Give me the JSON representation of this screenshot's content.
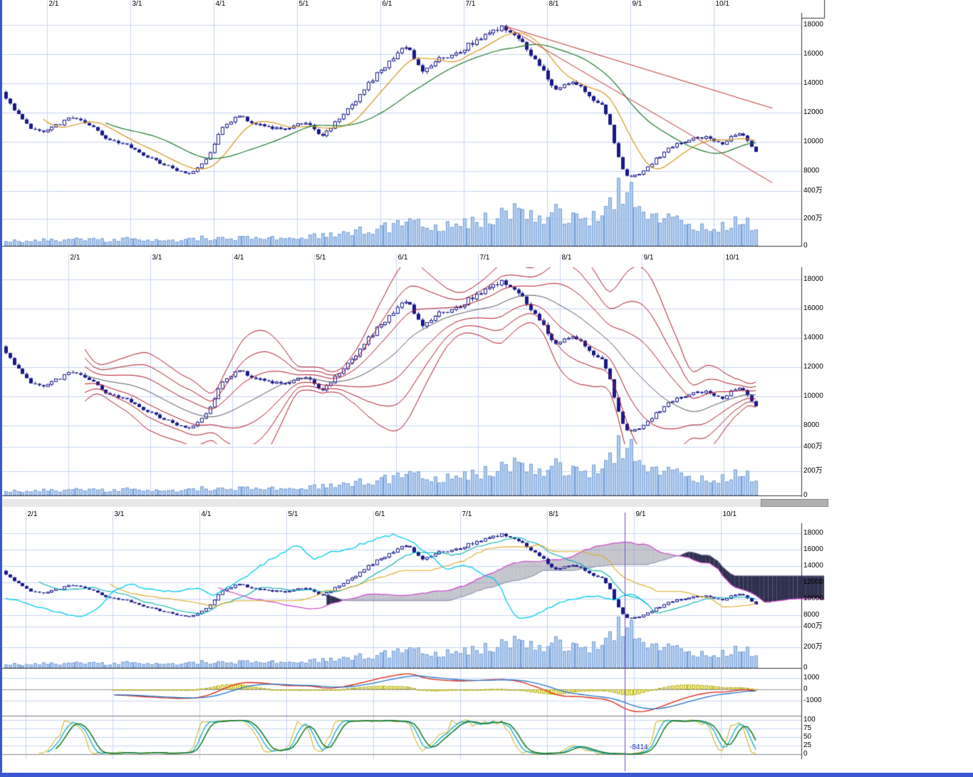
{
  "axes": {
    "month_labels": [
      "2/1",
      "3/1",
      "4/1",
      "5/1",
      "6/1",
      "7/1",
      "8/1",
      "9/1",
      "10/1"
    ],
    "price_ticks": [
      "18000",
      "16000",
      "14000",
      "12000",
      "10000",
      "8000"
    ],
    "volume_ticks": [
      "400万",
      "200万",
      "0"
    ],
    "macd_ticks": [
      "1000",
      "0",
      "-1000"
    ],
    "oscillator_ticks": [
      "100",
      "75",
      "50",
      "25",
      "0"
    ]
  },
  "cursor": {
    "value_label": "-8414"
  },
  "colors": {
    "grid": "#c8d4f0",
    "axis": "#333333",
    "candle_up_fill": "#ffffff",
    "candle_down_fill": "#1a1a8c",
    "candle_border": "#1a1a8c",
    "volume_fill": "#aecdf2",
    "volume_border": "#7b9fd4",
    "ma_short": "#d4951c",
    "ma_long": "#1e7a2e",
    "trendline": "#c03030",
    "bollinger_band": "#b01525",
    "bollinger_center": "#555566",
    "ichimoku_tenkan": "#00b0b0",
    "ichimoku_kijun": "#ddaa22",
    "ichimoku_chikou": "#00ccee",
    "ichimoku_senkou_a": "#cc44cc",
    "ichimoku_senkou_b": "#8888aa",
    "cloud_bull": "rgba(150,150,165,0.55)",
    "cloud_bear": "rgba(25,25,60,0.9)",
    "macd_line": "#dd2211",
    "macd_signal": "#2277cc",
    "macd_hist_fill": "#f0ee70",
    "macd_hist_border": "#b9b23a",
    "stoch_k": "#ccaa00",
    "stoch_d": "#00aacc",
    "stoch_sd": "#117722",
    "cursor": "#7755cc",
    "cursor_value": "#2233bb",
    "frame": "#3a57d0",
    "scroll_thumb": "#b0b0b0",
    "scroll_track": "#e8e8e8"
  },
  "chart_data": {
    "type": "candlestick",
    "title": "",
    "description": "Daily stock candlestick chart in three stacked panels, each with volume bars: (1) price with moving averages and descending trendlines from the July peak, (2) price with Bollinger bands at 1/2/3 sigma, (3) price with Ichimoku cloud plus MACD and stochastic oscillator sub-charts",
    "x_axis_months": [
      "2/1",
      "3/1",
      "4/1",
      "5/1",
      "6/1",
      "7/1",
      "8/1",
      "9/1",
      "10/1"
    ],
    "price_tick_values": [
      18000,
      16000,
      14000,
      12000,
      10000,
      8000
    ],
    "volume_tick_values": [
      400,
      200,
      0
    ],
    "volume_unit": "万",
    "macd_tick_values": [
      1000,
      0,
      -1000
    ],
    "oscillator_tick_values": [
      100,
      75,
      50,
      25,
      0
    ],
    "ylim": [
      6800,
      18600
    ],
    "n_days": 181,
    "anchor_step": 4,
    "noise_seed": 20240613,
    "close_anchors": [
      12900,
      11500,
      10700,
      11100,
      11600,
      11200,
      10300,
      9900,
      9300,
      8700,
      8200,
      7900,
      8800,
      10900,
      11700,
      11200,
      10900,
      11000,
      11300,
      10500,
      11600,
      12800,
      14300,
      15500,
      16500,
      14900,
      15700,
      16100,
      16800,
      17400,
      17800,
      16700,
      15200,
      13600,
      14100,
      13100,
      12000,
      8100,
      7800,
      8800,
      9700,
      10100,
      10300,
      9900,
      10600,
      9400
    ],
    "volume_anchors_10k": [
      40,
      35,
      45,
      40,
      50,
      45,
      40,
      45,
      50,
      45,
      40,
      50,
      55,
      60,
      55,
      50,
      55,
      50,
      60,
      70,
      80,
      100,
      120,
      130,
      140,
      160,
      130,
      150,
      170,
      180,
      220,
      240,
      200,
      230,
      210,
      200,
      220,
      400,
      240,
      190,
      170,
      150,
      140,
      130,
      180,
      120
    ],
    "panels": [
      {
        "name": "price-with-moving-averages",
        "moving_average_periods": [
          10,
          25
        ],
        "trendlines": [
          {
            "from_day": 120,
            "from_price": 17900,
            "to_day": 184,
            "to_price": 12300
          },
          {
            "from_day": 120,
            "from_price": 17900,
            "to_day": 184,
            "to_price": 7200
          }
        ]
      },
      {
        "name": "price-with-bollinger-bands",
        "bollinger": {
          "period": 20,
          "sigmas": [
            1,
            2,
            3
          ]
        }
      },
      {
        "name": "price-with-ichimoku-macd-stochastic",
        "ichimoku": {
          "tenkan": 9,
          "kijun": 26,
          "senkou_b": 52,
          "shift": 26
        },
        "macd": {
          "fast": 12,
          "slow": 26,
          "signal": 9
        },
        "stochastic": {
          "k_period": 9,
          "smooth": 3
        }
      }
    ]
  }
}
